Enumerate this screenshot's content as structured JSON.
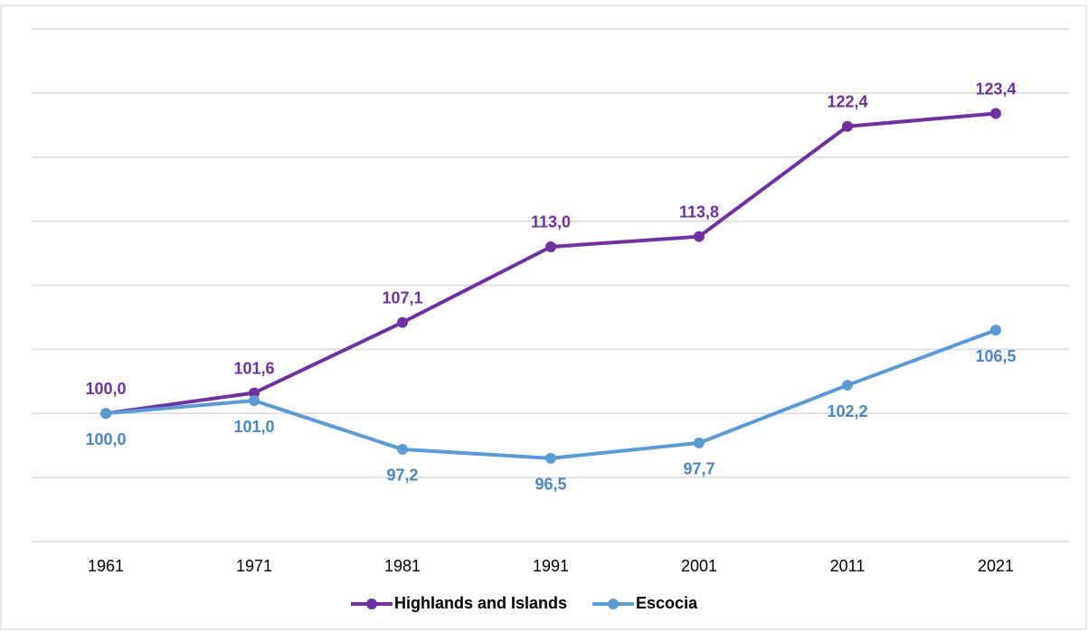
{
  "chart_data": {
    "type": "line",
    "categories": [
      "1961",
      "1971",
      "1981",
      "1991",
      "2001",
      "2011",
      "2021"
    ],
    "series": [
      {
        "name": "Highlands and Islands",
        "color": "#7030a0",
        "values": [
          100.0,
          101.6,
          107.1,
          113.0,
          113.8,
          122.4,
          123.4
        ],
        "value_labels": [
          "100,0",
          "101,6",
          "107,1",
          "113,0",
          "113,8",
          "122,4",
          "123,4"
        ]
      },
      {
        "name": "Escocia",
        "color": "#5b9bd5",
        "values": [
          100.0,
          101.0,
          97.2,
          96.5,
          97.7,
          102.2,
          106.5
        ],
        "value_labels": [
          "100,0",
          "101,0",
          "97,2",
          "96,5",
          "97,7",
          "102,2",
          "106,5"
        ]
      }
    ],
    "ylim": [
      90,
      130
    ],
    "yticks": [
      90,
      95,
      100,
      105,
      110,
      115,
      120,
      125,
      130
    ],
    "grid": true,
    "legend": "bottom"
  }
}
